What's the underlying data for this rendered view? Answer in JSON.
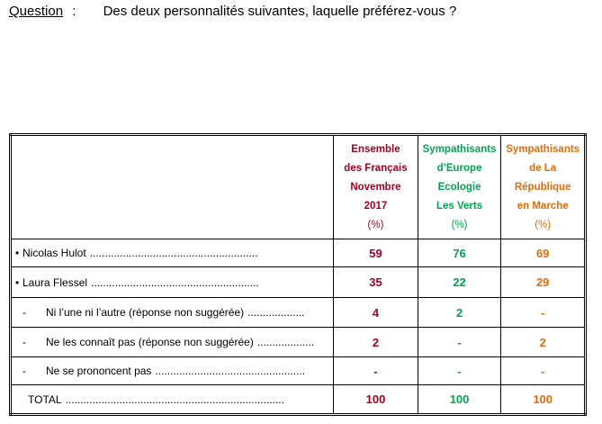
{
  "question": {
    "label": "Question",
    "colon": ":",
    "text": "Des deux personnalités suivantes, laquelle préférez-vous ?"
  },
  "table": {
    "columns": [
      {
        "lines": [
          "Ensemble",
          "des Français",
          "Novembre",
          "2017"
        ],
        "unit": "(%)",
        "color": "#a50021"
      },
      {
        "lines": [
          "Sympathisants",
          "d’Europe",
          "Ecologie",
          "Les Verts"
        ],
        "unit": "(%)",
        "color": "#00a550"
      },
      {
        "lines": [
          "Sympathisants",
          "de La",
          "République",
          "en Marche"
        ],
        "unit": "(%)",
        "color": "#e36c09"
      }
    ],
    "rows": [
      {
        "marker": "•",
        "label": "Nicolas Hulot",
        "leader": "........................................................",
        "cells": [
          59,
          76,
          69
        ]
      },
      {
        "marker": "•",
        "label": "Laura Flessel",
        "leader": "........................................................",
        "cells": [
          35,
          22,
          29
        ]
      },
      {
        "marker": "-",
        "label": "Ni l’une ni l’autre (réponse non suggérée)",
        "leader": "...................",
        "cells": [
          4,
          2,
          "-"
        ]
      },
      {
        "marker": "-",
        "label": "Ne les connaît pas (réponse non suggérée)",
        "leader": "...................",
        "cells": [
          2,
          "-",
          2
        ]
      },
      {
        "marker": "-",
        "label": "Ne se prononcent pas",
        "leader": "..................................................",
        "cells": [
          "-",
          "-",
          "-"
        ]
      },
      {
        "marker": "",
        "label": "TOTAL",
        "leader": ".........................................................................",
        "cells": [
          100,
          100,
          100
        ]
      }
    ]
  }
}
